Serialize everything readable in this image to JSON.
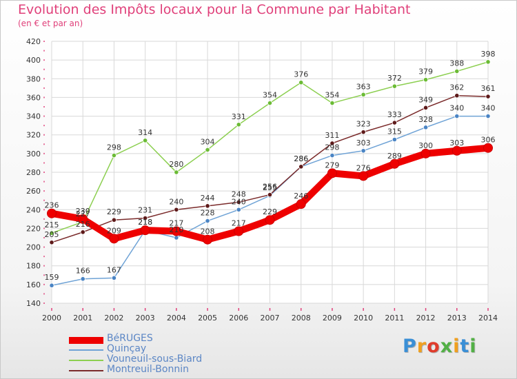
{
  "title": "Evolution des Impôts locaux pour la Commune par Habitant",
  "subtitle": "(en € et par an)",
  "logo": {
    "text": "Proxiti",
    "colors": [
      "#3a8fd6",
      "#f0a020",
      "#e03c2c",
      "#52b045",
      "#f0a020",
      "#3a8fd6",
      "#52b045"
    ]
  },
  "chart_data": {
    "type": "line",
    "title": "Evolution des Impôts locaux pour la Commune par Habitant",
    "subtitle": "(en € et par an)",
    "x": [
      "2000",
      "2001",
      "2002",
      "2003",
      "2004",
      "2005",
      "2006",
      "2007",
      "2008",
      "2009",
      "2010",
      "2011",
      "2012",
      "2013",
      "2014"
    ],
    "ylim": [
      140,
      420
    ],
    "yticks": [
      140,
      160,
      180,
      200,
      220,
      240,
      260,
      280,
      300,
      320,
      340,
      360,
      380,
      400,
      420
    ],
    "grid": true,
    "legend_position": "bottom-left",
    "series": [
      {
        "name": "Vouneuil-sous-Biard",
        "color": "#8ccf50",
        "dot": "#6bbb35",
        "values": [
          215,
          227,
          298,
          314,
          280,
          304,
          331,
          354,
          376,
          354,
          363,
          372,
          379,
          388,
          398
        ]
      },
      {
        "name": "Quinçay",
        "color": "#6fa3d6",
        "dot": "#4a84c4",
        "values": [
          159,
          166,
          167,
          218,
          210,
          228,
          240,
          255,
          286,
          298,
          303,
          315,
          328,
          340,
          340
        ]
      },
      {
        "name": "Montreuil-Bonnin",
        "color": "#7a2a2a",
        "dot": "#5e1a1a",
        "values": [
          205,
          216,
          229,
          231,
          240,
          244,
          248,
          256,
          286,
          311,
          323,
          333,
          349,
          362,
          361
        ]
      },
      {
        "name": "BéRUGES",
        "color": "#ee0000",
        "dot": "#ee0000",
        "values": [
          236,
          230,
          209,
          218,
          217,
          208,
          217,
          229,
          246,
          279,
          276,
          289,
          300,
          303,
          306
        ]
      }
    ],
    "legend": [
      "BéRUGES",
      "Quinçay",
      "Vouneuil-sous-Biard",
      "Montreuil-Bonnin"
    ]
  }
}
